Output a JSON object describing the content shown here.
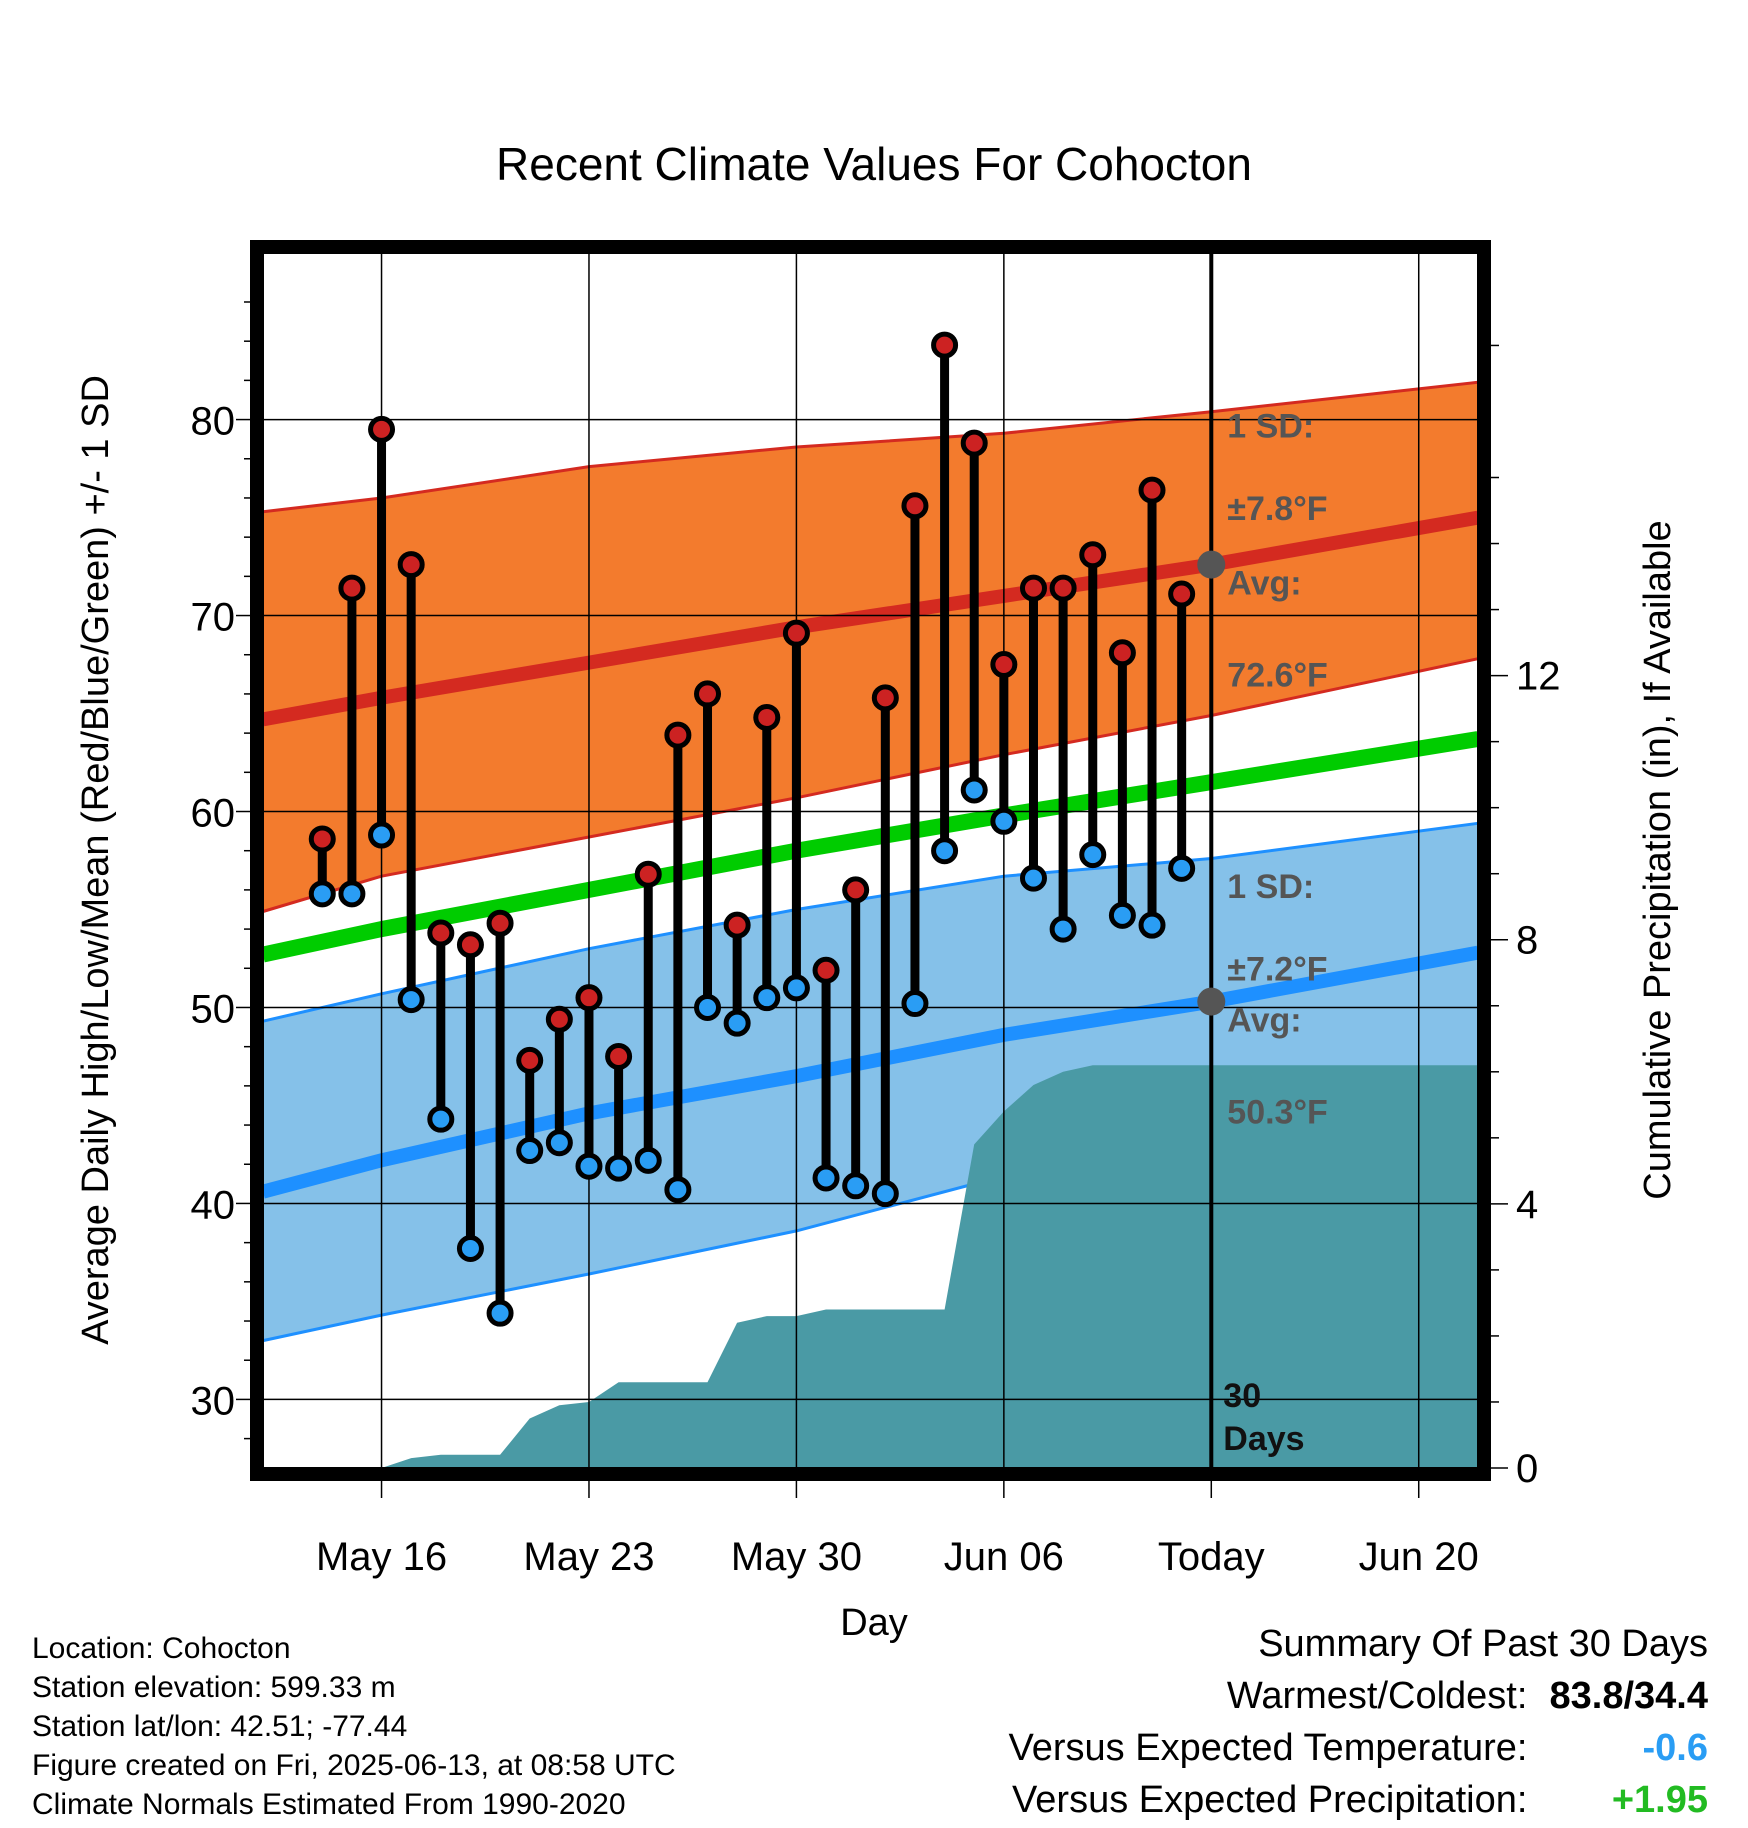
{
  "chart_data": {
    "type": "line",
    "title": "Recent Climate Values For Cohocton",
    "xlabel": "Day",
    "ylabel": "Average Daily High/Low/Mean (Red/Blue/Green) +/- 1 SD",
    "y2label": "Cumulative Precipitation (in), If Available",
    "ylim": [
      26.5,
      88.5
    ],
    "y2lim": [
      0,
      18.4
    ],
    "y_ticks": [
      30,
      40,
      50,
      60,
      70,
      80
    ],
    "y_tick_labels": [
      "30",
      "40",
      "50",
      "60",
      "70",
      "80"
    ],
    "y2_ticks": [
      0,
      4,
      8,
      12
    ],
    "y2_tick_labels": [
      "0",
      "4",
      "8",
      "12"
    ],
    "x_range_days": [
      "2025-05-12",
      "2025-06-22"
    ],
    "x_ticks": [
      "2025-05-16",
      "2025-05-23",
      "2025-05-30",
      "2025-06-06",
      "2025-06-13",
      "2025-06-20"
    ],
    "x_tick_labels": [
      "May 16",
      "May 23",
      "May 30",
      "Jun 06",
      "Today",
      "Jun 20"
    ],
    "grid": true,
    "today": "2025-06-13",
    "today_label": "30 Days",
    "normals": {
      "dates": [
        "2025-05-12",
        "2025-05-16",
        "2025-05-23",
        "2025-05-30",
        "2025-06-06",
        "2025-06-13",
        "2025-06-22"
      ],
      "high_mean": [
        64.7,
        65.8,
        67.6,
        69.4,
        71.0,
        72.6,
        75.0
      ],
      "high_sd_upper": [
        75.3,
        76.0,
        77.6,
        78.6,
        79.3,
        80.4,
        81.9
      ],
      "high_sd_lower": [
        54.9,
        56.7,
        58.7,
        60.7,
        62.9,
        64.9,
        67.8
      ],
      "mean": [
        52.7,
        54.0,
        56.0,
        58.0,
        59.8,
        61.5,
        63.7
      ],
      "low_mean": [
        40.6,
        42.2,
        44.6,
        46.5,
        48.6,
        50.3,
        52.8
      ],
      "low_sd_upper": [
        49.3,
        50.7,
        53.0,
        55.0,
        56.7,
        57.6,
        59.4
      ],
      "low_sd_lower": [
        33.0,
        34.3,
        36.4,
        38.6,
        41.4,
        43.9,
        46.2
      ]
    },
    "annotations": {
      "high_sd_line1": "1 SD:",
      "high_sd_line2": "±7.8°F",
      "high_avg_line1": "Avg:",
      "high_avg_line2": "72.6°F",
      "low_sd_line1": "1 SD:",
      "low_sd_line2": "±7.2°F",
      "low_avg_line1": "Avg:",
      "low_avg_line2": "50.3°F"
    },
    "daily_observed": {
      "dates": [
        "2025-05-14",
        "2025-05-15",
        "2025-05-16",
        "2025-05-17",
        "2025-05-18",
        "2025-05-19",
        "2025-05-20",
        "2025-05-21",
        "2025-05-22",
        "2025-05-23",
        "2025-05-24",
        "2025-05-25",
        "2025-05-26",
        "2025-05-27",
        "2025-05-28",
        "2025-05-29",
        "2025-05-30",
        "2025-05-31",
        "2025-06-01",
        "2025-06-02",
        "2025-06-03",
        "2025-06-04",
        "2025-06-05",
        "2025-06-06",
        "2025-06-07",
        "2025-06-08",
        "2025-06-09",
        "2025-06-10",
        "2025-06-11",
        "2025-06-12"
      ],
      "high": [
        58.6,
        71.4,
        79.5,
        72.6,
        53.8,
        53.2,
        54.3,
        47.3,
        49.4,
        50.5,
        47.5,
        56.8,
        63.9,
        66.0,
        54.2,
        64.8,
        69.1,
        51.9,
        56.0,
        65.8,
        75.6,
        83.8,
        78.8,
        67.5,
        71.4,
        71.4,
        73.1,
        68.1,
        76.4,
        71.1
      ],
      "low": [
        55.8,
        55.8,
        58.8,
        50.4,
        44.3,
        37.7,
        34.4,
        42.7,
        43.1,
        41.9,
        41.8,
        42.2,
        40.7,
        50.0,
        49.2,
        50.5,
        51.0,
        41.3,
        40.9,
        40.5,
        50.2,
        58.0,
        61.1,
        59.5,
        56.6,
        54.0,
        57.8,
        54.7,
        54.2,
        57.1
      ]
    },
    "precipitation": {
      "dates": [
        "2025-05-12",
        "2025-05-16",
        "2025-05-17",
        "2025-05-18",
        "2025-05-19",
        "2025-05-20",
        "2025-05-21",
        "2025-05-22",
        "2025-05-23",
        "2025-05-24",
        "2025-05-25",
        "2025-05-26",
        "2025-05-27",
        "2025-05-28",
        "2025-05-29",
        "2025-05-30",
        "2025-05-31",
        "2025-06-01",
        "2025-06-02",
        "2025-06-03",
        "2025-06-04",
        "2025-06-05",
        "2025-06-06",
        "2025-06-07",
        "2025-06-08",
        "2025-06-09",
        "2025-06-10",
        "2025-06-11",
        "2025-06-12",
        "2025-06-13",
        "2025-06-22"
      ],
      "cumulative": [
        0.0,
        0.0,
        0.15,
        0.2,
        0.2,
        0.2,
        0.75,
        0.95,
        1.0,
        1.3,
        1.3,
        1.3,
        1.3,
        2.2,
        2.3,
        2.3,
        2.4,
        2.4,
        2.4,
        2.4,
        2.4,
        4.9,
        5.4,
        5.8,
        6.0,
        6.1,
        6.1,
        6.1,
        6.1,
        6.1,
        6.1
      ]
    },
    "colors": {
      "high_band": "#f37b2d",
      "high_band_edge": "#d42a20",
      "high_line": "#d42a20",
      "mean_line": "#00cc00",
      "low_band": "#85c1e9",
      "low_band_edge": "#1e90ff",
      "low_line": "#1e90ff",
      "precip_fill": "#4a9aa5",
      "high_marker": "#cc2222",
      "low_marker": "#2a9df4",
      "today_marker": "#555555"
    }
  },
  "info": {
    "location": "Location: Cohocton",
    "elevation": "Station elevation: 599.33 m",
    "latlon": "Station lat/lon: 42.51; -77.44",
    "created": "Figure created on Fri, 2025-06-13, at 08:58 UTC",
    "normals": "Climate Normals Estimated From 1990-2020"
  },
  "summary": {
    "title": "Summary Of Past 30 Days",
    "warmest_label": "Warmest/Coldest:",
    "warmest_value": "83.8/34.4",
    "temp_label": "Versus Expected Temperature:",
    "temp_value": "-0.6",
    "temp_color": "#2a9df4",
    "precip_label": "Versus Expected Precipitation:",
    "precip_value": "+1.95",
    "precip_color": "#22bb22"
  }
}
